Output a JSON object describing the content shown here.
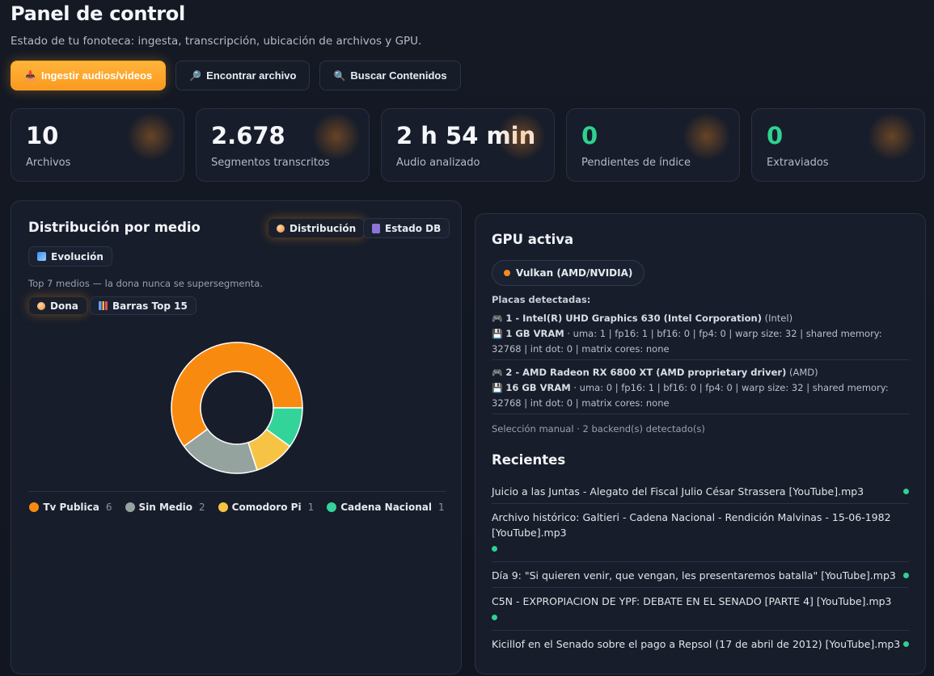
{
  "header": {
    "title": "Panel de control",
    "subtitle": "Estado de tu fonoteca: ingesta, transcripción, ubicación de archivos y GPU."
  },
  "actions": [
    {
      "label": "Ingestir audios/videos",
      "icon": "inbox-tray-icon"
    },
    {
      "label": "Encontrar archivo",
      "icon": "magnifier-icon"
    },
    {
      "label": "Buscar Contenidos",
      "icon": "search-icon"
    }
  ],
  "stats": [
    {
      "value": "10",
      "label": "Archivos"
    },
    {
      "value": "2.678",
      "label": "Segmentos transcritos"
    },
    {
      "value": "2 h 54 min",
      "label": "Audio analizado"
    },
    {
      "value": "0",
      "label": "Pendientes de índice"
    },
    {
      "value": "0",
      "label": "Extraviados"
    }
  ],
  "distribution": {
    "title": "Distribución por medio",
    "tabs": {
      "distribucion": "Distribución",
      "estado_db": "Estado DB",
      "evolucion": "Evolución"
    },
    "note": "Top 7 medios — la dona nunca se supersegmenta.",
    "views": {
      "dona": "Dona",
      "barras": "Barras Top 15"
    }
  },
  "chart_data": {
    "type": "pie",
    "categories": [
      "Tv Publica",
      "Sin Medio",
      "Comodoro Pi",
      "Cadena Nacional"
    ],
    "values": [
      6,
      2,
      1,
      1
    ],
    "colors": [
      "#f98a10",
      "#95a39f",
      "#f7c344",
      "#33d49a"
    ]
  },
  "gpu": {
    "title": "GPU activa",
    "backend": "Vulkan (AMD/NVIDIA)",
    "placas_label": "Placas detectadas:",
    "devices": [
      {
        "name": "1 - Intel(R) UHD Graphics 630 (Intel Corporation)",
        "vendor": "(Intel)",
        "vram": "1 GB VRAM",
        "details": "· uma: 1 | fp16: 1 | bf16: 0 | fp4: 0 | warp size: 32 | shared memory: 32768 | int dot: 0 | matrix cores: none"
      },
      {
        "name": "2 - AMD Radeon RX 6800 XT (AMD proprietary driver)",
        "vendor": "(AMD)",
        "vram": "16 GB VRAM",
        "details": "· uma: 0 | fp16: 1 | bf16: 0 | fp4: 0 | warp size: 32 | shared memory: 32768 | int dot: 0 | matrix cores: none"
      }
    ],
    "selection": "Selección manual · 2 backend(s) detectado(s)"
  },
  "recent": {
    "title": "Recientes",
    "items": [
      "Juicio a las Juntas - Alegato del Fiscal Julio César Strassera [YouTube].mp3",
      "Archivo histórico: Galtieri - Cadena Nacional - Rendición Malvinas - 15-06-1982 [YouTube].mp3",
      "Día 9: \"Si quieren venir, que vengan, les presentaremos batalla\" [YouTube].mp3",
      "C5N - EXPROPIACION DE YPF: DEBATE EN EL SENADO [PARTE 4] [YouTube].mp3",
      "Kicillof en el Senado sobre el pago a Repsol (17 de abril de 2012) [YouTube].mp3"
    ]
  }
}
